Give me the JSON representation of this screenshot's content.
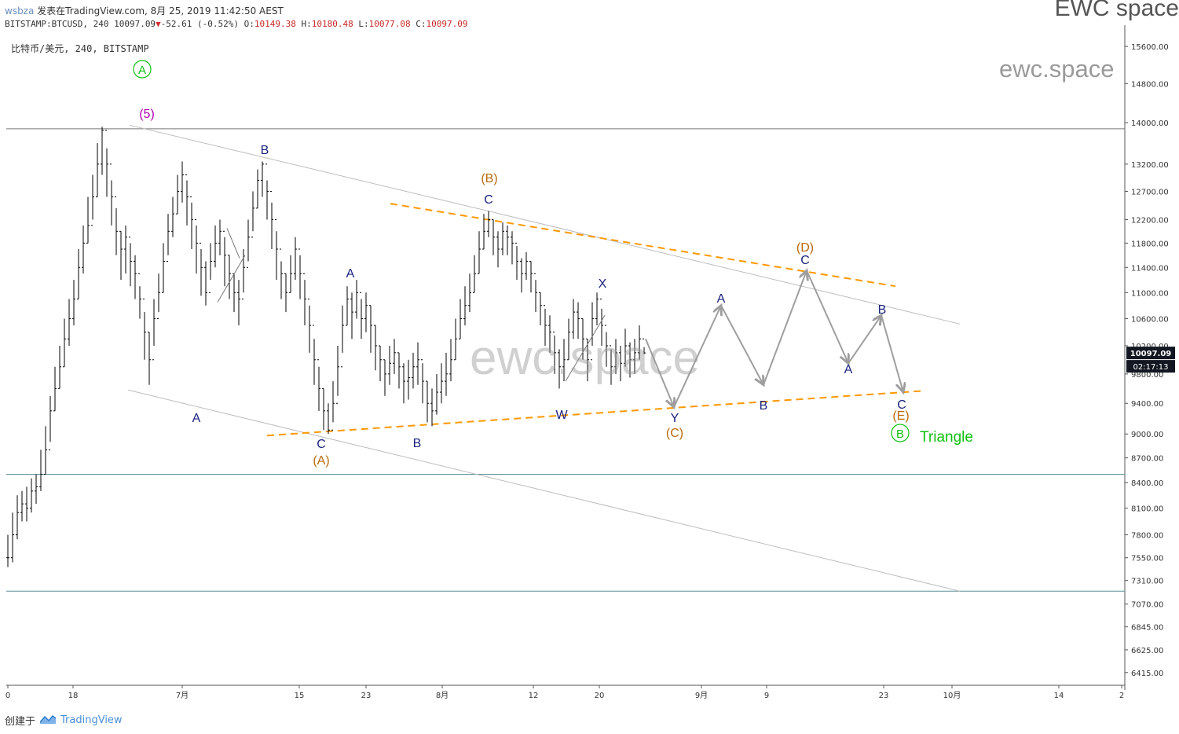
{
  "header": {
    "user": "wsbza",
    "published": "发表在TradingView.com, 8月 25, 2019 11:42:50 AEST",
    "ticker": "BITSTAMP:BTCUSD, 240",
    "last": "10097.09",
    "change_arrow": "▼",
    "change": "-52.61 (-0.52%)",
    "o_label": "O:",
    "o_value": "10149.38",
    "h_label": "H:",
    "h_value": "10180.48",
    "l_label": "L:",
    "l_value": "10077.08",
    "c_label": "C:",
    "c_value": "10097.09"
  },
  "symbol_title": "比特币/美元, 240, BITSTAMP",
  "brand": "EWC space",
  "watermark_small": "ewc.space",
  "watermark_big": "ewc.space",
  "footer": {
    "created_by": "创建于",
    "logo_text": "TradingView"
  },
  "colors": {
    "candle": "#000000",
    "blue_label": "#1a237e",
    "brown_label": "#b8690a",
    "purple_label": "#b000b0",
    "green": "#10c010",
    "orange_dash": "#ff9800",
    "channel": "#bdbdbd",
    "projection": "#9e9e9e",
    "hline": "#5f8f98",
    "price_tag_bg": "#131722"
  },
  "chart_data": {
    "type": "candlestick",
    "symbol": "BITSTAMP:BTCUSD",
    "interval": "240",
    "y_scale": "log",
    "ylim": [
      6300,
      15900
    ],
    "y_ticks": [
      "15600.00",
      "14800.00",
      "14000.00",
      "13200.00",
      "12700.00",
      "12200.00",
      "11800.00",
      "11400.00",
      "11000.00",
      "10600.00",
      "10200.00",
      "9800.00",
      "9400.00",
      "9000.00",
      "8700.00",
      "8400.00",
      "8100.00",
      "7800.00",
      "7550.00",
      "7310.00",
      "7070.00",
      "6845.00",
      "6625.00",
      "6415.00"
    ],
    "x_tick_labels": [
      "0",
      "18",
      "7月",
      "15",
      "23",
      "8月",
      "12",
      "20",
      "9月",
      "9",
      "23",
      "10月",
      "14",
      "2"
    ],
    "current_price": "10097.09",
    "countdown": "02:17:13",
    "horizontal_levels": [
      13880,
      8500,
      7200
    ],
    "candles_close": [
      7550,
      7800,
      8050,
      8150,
      8100,
      8300,
      8350,
      8500,
      8800,
      9300,
      9600,
      9900,
      10300,
      10600,
      10900,
      11400,
      11800,
      12100,
      12600,
      13200,
      13850,
      13200,
      12600,
      12000,
      11700,
      11900,
      11500,
      11300,
      10900,
      10400,
      10000,
      10600,
      11000,
      11500,
      12000,
      12300,
      12700,
      13000,
      12600,
      12200,
      11800,
      11400,
      11000,
      11500,
      11800,
      12000,
      11600,
      11300,
      11000,
      10900,
      11400,
      11900,
      12400,
      12900,
      13200,
      12700,
      12200,
      11700,
      11300,
      11000,
      11300,
      11700,
      11300,
      10900,
      10500,
      10000,
      9600,
      9300,
      9050,
      9400,
      9900,
      10500,
      10900,
      10700,
      11000,
      10600,
      10800,
      10500,
      10200,
      10000,
      9800,
      9950,
      10100,
      9900,
      9700,
      9750,
      9900,
      10000,
      9700,
      9400,
      9300,
      9550,
      9700,
      9800,
      10000,
      10300,
      10600,
      10800,
      11000,
      11300,
      11700,
      12000,
      12200,
      11900,
      11700,
      12000,
      11900,
      11800,
      11500,
      11300,
      11500,
      11300,
      11000,
      10800,
      10500,
      10400,
      10100,
      9900,
      10000,
      10400,
      10700,
      10600,
      10300,
      10000,
      10600,
      10900,
      10500,
      10200,
      9900,
      10100,
      9950,
      10200,
      10000,
      10100,
      10300,
      10097.09
    ],
    "candles_high": [
      7800,
      8050,
      8250,
      8300,
      8350,
      8450,
      8500,
      8800,
      9100,
      9500,
      9900,
      10200,
      10600,
      10900,
      11200,
      11700,
      12100,
      12600,
      13000,
      13600,
      13920,
      13500,
      12900,
      12400,
      12000,
      12100,
      11800,
      11600,
      11100,
      10700,
      10400,
      10900,
      11300,
      11800,
      12300,
      12600,
      13000,
      13250,
      12900,
      12500,
      12100,
      11700,
      11500,
      11800,
      12100,
      12200,
      11900,
      11600,
      11300,
      11200,
      11700,
      12200,
      12700,
      13100,
      13250,
      12900,
      12500,
      12000,
      11500,
      11300,
      11600,
      11900,
      11600,
      11200,
      10800,
      10300,
      9900,
      9600,
      9400,
      9700,
      10200,
      10800,
      11100,
      11000,
      11200,
      10900,
      11000,
      10800,
      10500,
      10200,
      10000,
      10200,
      10300,
      10100,
      9950,
      10000,
      10100,
      10250,
      9950,
      9700,
      9600,
      9800,
      9950,
      10100,
      10300,
      10600,
      10900,
      11100,
      11300,
      11600,
      12000,
      12300,
      12350,
      12200,
      12000,
      12150,
      12100,
      12000,
      11750,
      11550,
      11650,
      11500,
      11200,
      11000,
      10750,
      10650,
      10350,
      10150,
      10300,
      10600,
      10900,
      10850,
      10600,
      10300,
      10850,
      11000,
      10750,
      10400,
      10150,
      10300,
      10200,
      10450,
      10250,
      10300,
      10500,
      10180.48
    ],
    "candles_low": [
      7450,
      7500,
      7750,
      7950,
      7950,
      8050,
      8150,
      8300,
      8500,
      8900,
      9300,
      9600,
      9900,
      10200,
      10500,
      10900,
      11300,
      11800,
      12200,
      12600,
      13000,
      12600,
      12100,
      11600,
      11200,
      11300,
      11100,
      10900,
      10600,
      10000,
      9650,
      10200,
      10700,
      11000,
      11600,
      11900,
      12300,
      12500,
      12100,
      11700,
      11300,
      10950,
      10800,
      11200,
      11400,
      11600,
      11100,
      10900,
      10700,
      10500,
      11000,
      11500,
      12000,
      12400,
      12600,
      12200,
      11700,
      11200,
      10900,
      10700,
      11000,
      11200,
      10900,
      10500,
      10100,
      9650,
      9300,
      9050,
      9000,
      9150,
      9500,
      10100,
      10500,
      10300,
      10600,
      10300,
      10400,
      10100,
      9850,
      9700,
      9500,
      9650,
      9800,
      9600,
      9400,
      9450,
      9600,
      9650,
      9400,
      9150,
      9100,
      9250,
      9400,
      9500,
      9700,
      10000,
      10300,
      10500,
      10700,
      11000,
      11300,
      11700,
      11900,
      11600,
      11400,
      11600,
      11600,
      11450,
      11200,
      11000,
      11200,
      11000,
      10700,
      10500,
      10200,
      10100,
      9800,
      9600,
      9700,
      10000,
      10300,
      10300,
      10000,
      9700,
      10200,
      10500,
      10200,
      9900,
      9650,
      9800,
      9700,
      9900,
      9750,
      9800,
      10000,
      10077.08
    ],
    "wave_labels": [
      {
        "text": "A",
        "series": "circle-green"
      },
      {
        "text": "(5)",
        "series": "purple"
      },
      {
        "text": "B",
        "series": "blue"
      },
      {
        "text": "A",
        "series": "blue"
      },
      {
        "text": "C",
        "series": "blue"
      },
      {
        "text": "(A)",
        "series": "brown"
      },
      {
        "text": "A",
        "series": "blue"
      },
      {
        "text": "B",
        "series": "blue"
      },
      {
        "text": "(B)",
        "series": "brown"
      },
      {
        "text": "C",
        "series": "blue"
      },
      {
        "text": "W",
        "series": "blue"
      },
      {
        "text": "X",
        "series": "blue"
      },
      {
        "text": "Y",
        "series": "blue"
      },
      {
        "text": "(C)",
        "series": "brown"
      },
      {
        "text": "A",
        "series": "blue"
      },
      {
        "text": "B",
        "series": "blue"
      },
      {
        "text": "(D)",
        "series": "brown"
      },
      {
        "text": "C",
        "series": "blue"
      },
      {
        "text": "A",
        "series": "blue"
      },
      {
        "text": "B",
        "series": "blue"
      },
      {
        "text": "C",
        "series": "blue"
      },
      {
        "text": "(E)",
        "series": "brown"
      },
      {
        "text": "B",
        "series": "circle-green"
      },
      {
        "text": "Triangle",
        "series": "green-text"
      }
    ]
  }
}
